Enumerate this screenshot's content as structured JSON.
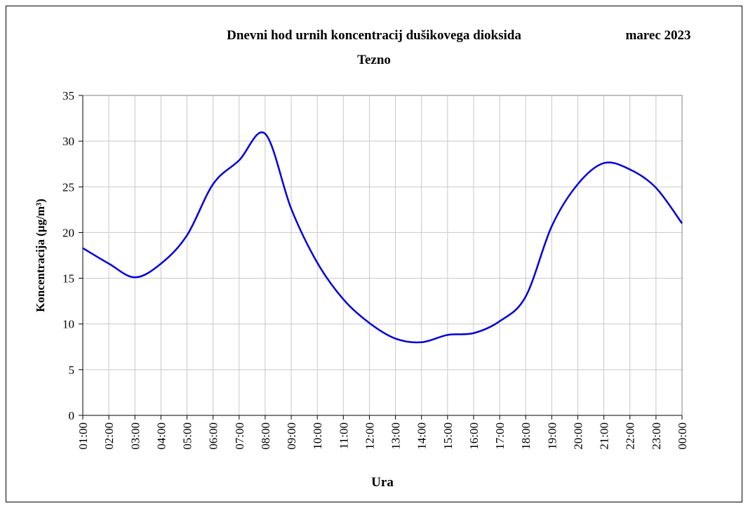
{
  "chart_data": {
    "type": "line",
    "title": "Dnevni hod urnih koncentracij dušikovega dioksida",
    "subtitle": "Tezno",
    "annotation": "marec 2023",
    "x_label": "Ura",
    "y_label": "Koncentracija (µg/m³)",
    "categories": [
      "01:00",
      "02:00",
      "03:00",
      "04:00",
      "05:00",
      "06:00",
      "07:00",
      "08:00",
      "09:00",
      "10:00",
      "11:00",
      "12:00",
      "13:00",
      "14:00",
      "15:00",
      "16:00",
      "17:00",
      "18:00",
      "19:00",
      "20:00",
      "21:00",
      "22:00",
      "23:00",
      "00:00"
    ],
    "series": [
      {
        "color": "#0000e0",
        "values": [
          18.3,
          16.6,
          15.1,
          16.6,
          19.7,
          25.3,
          27.9,
          30.8,
          22.6,
          16.7,
          12.7,
          10.1,
          8.4,
          8.0,
          8.8,
          9.0,
          10.3,
          13.0,
          20.7,
          25.3,
          27.6,
          26.9,
          24.9,
          21.0
        ]
      }
    ],
    "ylim": [
      0,
      35
    ],
    "yticks": [
      0,
      5,
      10,
      15,
      20,
      25,
      30,
      35
    ],
    "grid": true
  }
}
